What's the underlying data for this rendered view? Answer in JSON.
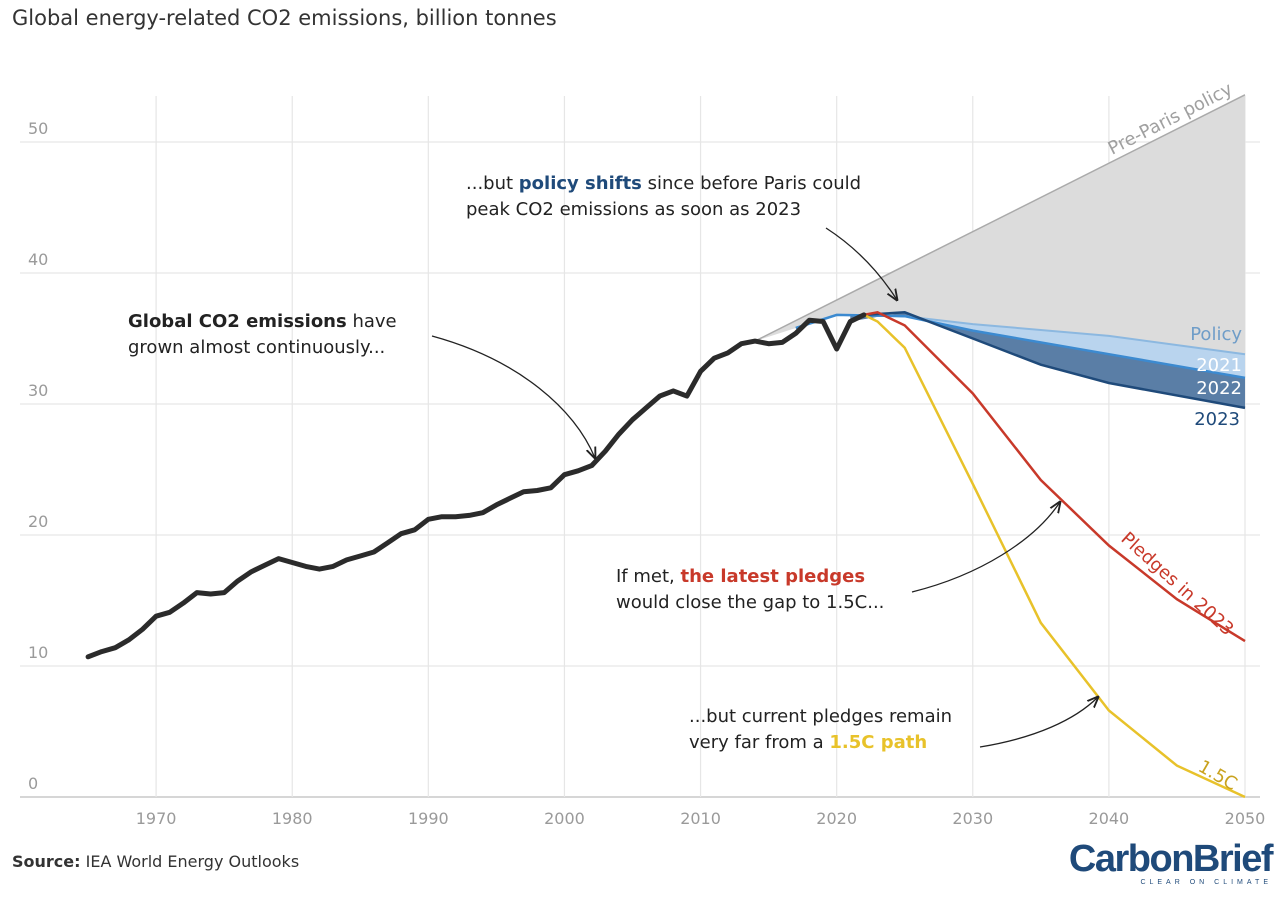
{
  "title": "Global energy-related CO2 emissions, billion tonnes",
  "source_label": "Source:",
  "source_text": " IEA World Energy Outlooks",
  "logo": {
    "brand": "CarbonBrief",
    "tagline": "CLEAR ON CLIMATE"
  },
  "annotations": {
    "growth": {
      "bold": "Global CO2 emissions",
      "rest1": " have",
      "line2": "grown almost continuously..."
    },
    "policy": {
      "prefix": "...but ",
      "bold": "policy shifts",
      "rest1": " since before Paris could",
      "line2": "peak CO2 emissions as soon as 2023"
    },
    "pledges": {
      "prefix": "If met, ",
      "bold": "the latest pledges",
      "line2": "would close the gap to 1.5C..."
    },
    "onefive": {
      "line1": "...but current pledges remain",
      "prefix": "very far from a ",
      "bold": "1.5C path"
    }
  },
  "colors": {
    "history": "#2b2b2b",
    "prepariss": "#aaaaaa",
    "pre_fill": "#dcdcdc",
    "policy2021": "#b9d4ee",
    "policy2022": "#3c8ad0",
    "policy2023": "#1f4a7a",
    "band2022": "#5a7ea6",
    "pledges": "#c8392a",
    "onefive": "#e8c22a"
  },
  "chart_data": {
    "type": "line",
    "title": "Global energy-related CO2 emissions, billion tonnes",
    "xlim": [
      1960,
      2050
    ],
    "ylim": [
      0,
      54
    ],
    "xticks": [
      1970,
      1980,
      1990,
      2000,
      2010,
      2020,
      2030,
      2040,
      2050
    ],
    "yticks": [
      0,
      10,
      20,
      30,
      40,
      50
    ],
    "series": [
      {
        "name": "Historical emissions",
        "x": [
          1965,
          1966,
          1967,
          1968,
          1969,
          1970,
          1971,
          1972,
          1973,
          1974,
          1975,
          1976,
          1977,
          1978,
          1979,
          1980,
          1981,
          1982,
          1983,
          1984,
          1985,
          1986,
          1987,
          1988,
          1989,
          1990,
          1991,
          1992,
          1993,
          1994,
          1995,
          1996,
          1997,
          1998,
          1999,
          2000,
          2001,
          2002,
          2003,
          2004,
          2005,
          2006,
          2007,
          2008,
          2009,
          2010,
          2011,
          2012,
          2013,
          2014,
          2015,
          2016,
          2017,
          2018,
          2019,
          2020,
          2021,
          2022
        ],
        "y": [
          10.7,
          11.1,
          11.4,
          12.0,
          12.8,
          13.8,
          14.1,
          14.8,
          15.6,
          15.5,
          15.6,
          16.5,
          17.2,
          17.7,
          18.2,
          17.9,
          17.6,
          17.4,
          17.6,
          18.1,
          18.4,
          18.7,
          19.4,
          20.1,
          20.4,
          21.2,
          21.4,
          21.4,
          21.5,
          21.7,
          22.3,
          22.8,
          23.3,
          23.4,
          23.6,
          24.6,
          24.9,
          25.3,
          26.4,
          27.7,
          28.8,
          29.7,
          30.6,
          31.0,
          30.6,
          32.5,
          33.5,
          33.9,
          34.6,
          34.8,
          34.6,
          34.7,
          35.4,
          36.4,
          36.3,
          34.2,
          36.3,
          36.8
        ]
      },
      {
        "name": "Pre-Paris policy",
        "x": [
          2014,
          2050
        ],
        "y": [
          34.8,
          53.6
        ]
      },
      {
        "name": "Policy 2021",
        "x": [
          2017,
          2020,
          2025,
          2030,
          2040,
          2050
        ],
        "y": [
          35.8,
          36.8,
          36.7,
          36.1,
          35.2,
          33.8
        ]
      },
      {
        "name": "Policy 2022",
        "x": [
          2017,
          2020,
          2025,
          2030,
          2040,
          2050
        ],
        "y": [
          35.8,
          36.8,
          36.7,
          35.6,
          33.8,
          32.0
        ]
      },
      {
        "name": "Policy 2023",
        "x": [
          2021,
          2022,
          2025,
          2030,
          2035,
          2040,
          2050
        ],
        "y": [
          36.3,
          36.8,
          37.0,
          35.0,
          33.0,
          31.6,
          29.7
        ]
      },
      {
        "name": "Pledges in 2023",
        "x": [
          2022,
          2023,
          2025,
          2030,
          2035,
          2040,
          2045,
          2050
        ],
        "y": [
          36.8,
          37.0,
          36.0,
          30.8,
          24.2,
          19.2,
          15.1,
          11.9
        ]
      },
      {
        "name": "1.5C",
        "x": [
          2022,
          2023,
          2025,
          2030,
          2035,
          2040,
          2045,
          2050
        ],
        "y": [
          36.8,
          36.3,
          34.3,
          23.9,
          13.3,
          6.6,
          2.4,
          0.0
        ]
      }
    ],
    "series_labels": {
      "prepariss": "Pre-Paris policy",
      "policy": "Policy",
      "p2021": "2021",
      "p2022": "2022",
      "p2023": "2023",
      "pledges": "Pledges in 2023",
      "onefive": "1.5C"
    }
  }
}
